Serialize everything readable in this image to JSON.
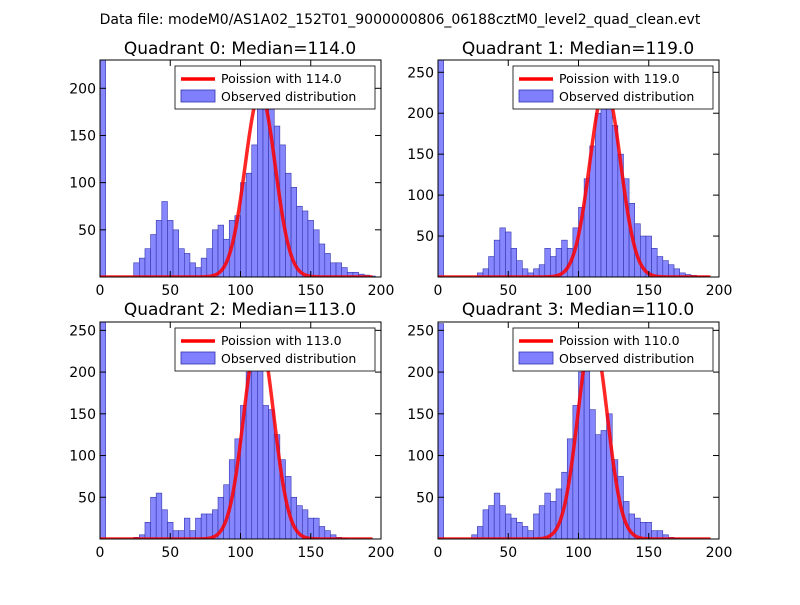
{
  "figure": {
    "suptitle": "Data file: modeM0/AS1A02_152T01_9000000806_06188cztM0_level2_quad_clean.evt"
  },
  "colors": {
    "bar_fill": "#8080ff",
    "bar_stroke": "#3333aa",
    "curve": "#ff0000",
    "axes": "#000000"
  },
  "chart_data": [
    {
      "type": "bar+line",
      "title": "Quadrant 0: Median=114.0",
      "xlim": [
        0,
        200
      ],
      "ylim": [
        0,
        230
      ],
      "xticks": [
        0,
        50,
        100,
        150,
        200
      ],
      "yticks": [
        0,
        50,
        100,
        150,
        200
      ],
      "bin_width": 4,
      "bin_starts": [
        0,
        4,
        8,
        12,
        16,
        20,
        24,
        28,
        32,
        36,
        40,
        44,
        48,
        52,
        56,
        60,
        64,
        68,
        72,
        76,
        80,
        84,
        88,
        92,
        96,
        100,
        104,
        108,
        112,
        116,
        120,
        124,
        128,
        132,
        136,
        140,
        144,
        148,
        152,
        156,
        160,
        164,
        168,
        172,
        176,
        180,
        184,
        188,
        192
      ],
      "hist_values": [
        230,
        0,
        0,
        0,
        0,
        0,
        15,
        20,
        30,
        45,
        60,
        80,
        60,
        50,
        30,
        25,
        15,
        10,
        20,
        30,
        50,
        55,
        40,
        60,
        65,
        100,
        110,
        140,
        190,
        200,
        195,
        160,
        140,
        110,
        95,
        75,
        70,
        60,
        50,
        35,
        25,
        15,
        15,
        10,
        5,
        5,
        3,
        2,
        1
      ],
      "poisson_label": "Poission with 114.0",
      "poisson_mu": 114.0,
      "poisson_peak": 195,
      "hist_label": "Observed distribution",
      "legend_position": "upper right"
    },
    {
      "type": "bar+line",
      "title": "Quadrant 1: Median=119.0",
      "xlim": [
        0,
        200
      ],
      "ylim": [
        0,
        265
      ],
      "xticks": [
        0,
        50,
        100,
        150,
        200
      ],
      "yticks": [
        0,
        50,
        100,
        150,
        200,
        250
      ],
      "bin_width": 4,
      "bin_starts": [
        0,
        4,
        8,
        12,
        16,
        20,
        24,
        28,
        32,
        36,
        40,
        44,
        48,
        52,
        56,
        60,
        64,
        68,
        72,
        76,
        80,
        84,
        88,
        92,
        96,
        100,
        104,
        108,
        112,
        116,
        120,
        124,
        128,
        132,
        136,
        140,
        144,
        148,
        152,
        156,
        160,
        164,
        168,
        172,
        176,
        180,
        184,
        188,
        192
      ],
      "hist_values": [
        265,
        0,
        0,
        0,
        0,
        0,
        0,
        5,
        10,
        25,
        45,
        60,
        55,
        35,
        20,
        10,
        5,
        10,
        15,
        35,
        25,
        35,
        45,
        35,
        60,
        85,
        120,
        160,
        200,
        225,
        215,
        185,
        150,
        120,
        90,
        65,
        50,
        50,
        35,
        25,
        20,
        15,
        10,
        5,
        3,
        2,
        1,
        1,
        0
      ],
      "poisson_label": "Poission with 119.0",
      "poisson_mu": 119.0,
      "poisson_peak": 232,
      "hist_label": "Observed distribution",
      "legend_position": "upper right"
    },
    {
      "type": "bar+line",
      "title": "Quadrant 2: Median=113.0",
      "xlim": [
        0,
        200
      ],
      "ylim": [
        0,
        260
      ],
      "xticks": [
        0,
        50,
        100,
        150,
        200
      ],
      "yticks": [
        0,
        50,
        100,
        150,
        200,
        250
      ],
      "bin_width": 4,
      "bin_starts": [
        0,
        4,
        8,
        12,
        16,
        20,
        24,
        28,
        32,
        36,
        40,
        44,
        48,
        52,
        56,
        60,
        64,
        68,
        72,
        76,
        80,
        84,
        88,
        92,
        96,
        100,
        104,
        108,
        112,
        116,
        120,
        124,
        128,
        132,
        136,
        140,
        144,
        148,
        152,
        156,
        160,
        164,
        168,
        172,
        176,
        180,
        184,
        188
      ],
      "hist_values": [
        260,
        0,
        0,
        0,
        0,
        0,
        2,
        5,
        20,
        50,
        55,
        35,
        20,
        10,
        10,
        25,
        10,
        25,
        30,
        30,
        35,
        50,
        65,
        95,
        120,
        160,
        200,
        230,
        245,
        160,
        155,
        125,
        95,
        75,
        50,
        40,
        35,
        25,
        25,
        15,
        10,
        5,
        2,
        1,
        0,
        0,
        0,
        0
      ],
      "poisson_label": "Poission with 113.0",
      "poisson_mu": 113.0,
      "poisson_peak": 246,
      "hist_label": "Observed distribution",
      "legend_position": "upper right"
    },
    {
      "type": "bar+line",
      "title": "Quadrant 3: Median=110.0",
      "xlim": [
        0,
        200
      ],
      "ylim": [
        0,
        260
      ],
      "xticks": [
        0,
        50,
        100,
        150,
        200
      ],
      "yticks": [
        0,
        50,
        100,
        150,
        200,
        250
      ],
      "bin_width": 4,
      "bin_starts": [
        0,
        4,
        8,
        12,
        16,
        20,
        24,
        28,
        32,
        36,
        40,
        44,
        48,
        52,
        56,
        60,
        64,
        68,
        72,
        76,
        80,
        84,
        88,
        92,
        96,
        100,
        104,
        108,
        112,
        116,
        120,
        124,
        128,
        132,
        136,
        140,
        144,
        148,
        152,
        156,
        160,
        164,
        168,
        172,
        176,
        180,
        184
      ],
      "hist_values": [
        258,
        0,
        0,
        0,
        0,
        0,
        5,
        15,
        35,
        40,
        55,
        40,
        30,
        25,
        20,
        15,
        10,
        30,
        40,
        55,
        45,
        60,
        80,
        120,
        160,
        200,
        220,
        155,
        125,
        130,
        150,
        95,
        75,
        45,
        30,
        25,
        20,
        20,
        10,
        10,
        5,
        2,
        1,
        0,
        0,
        0,
        0
      ],
      "poisson_label": "Poission with 110.0",
      "poisson_mu": 110.0,
      "poisson_peak": 245,
      "hist_label": "Observed distribution",
      "legend_position": "upper right"
    }
  ]
}
